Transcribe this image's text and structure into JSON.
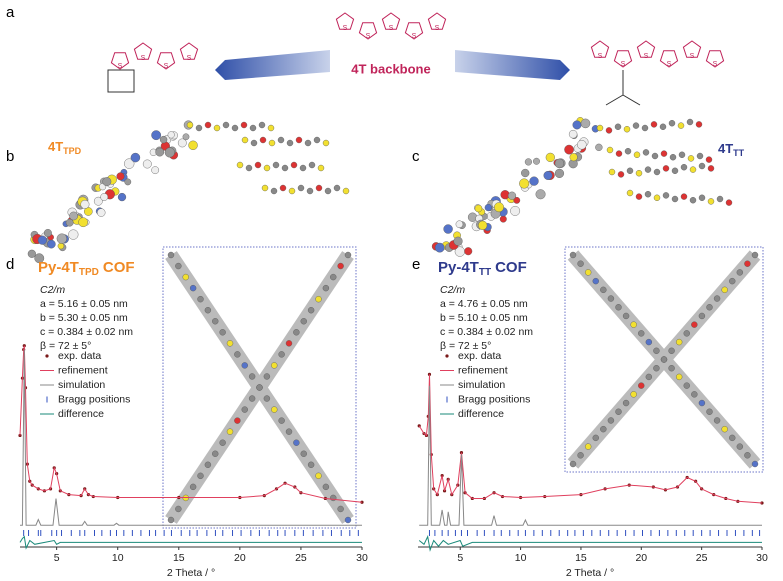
{
  "panel_labels": [
    "a",
    "b",
    "c",
    "d",
    "e"
  ],
  "molecules": {
    "center": "4T backbone",
    "left": {
      "name": "4T",
      "sub": "TPD"
    },
    "right": {
      "name": "4T",
      "sub": "TT"
    }
  },
  "chart_data": [
    {
      "type": "line",
      "title": "Py-4T",
      "title_sub": "TPD",
      "title_suffix": "COF",
      "title_color": "#f08a24",
      "space_group": "C2/m",
      "parameters": [
        "a = 5.16 ± 0.05 nm",
        "b = 5.30 ± 0.05 nm",
        "c = 0.384 ± 0.02 nm",
        "β = 72 ± 5°"
      ],
      "xlabel": "2 Theta / °",
      "xlim": [
        2,
        30
      ],
      "xticks": [
        5,
        10,
        15,
        20,
        25,
        30
      ],
      "ylim": [
        -10,
        100
      ],
      "series": [
        {
          "name": "exp. data",
          "color": "#7a1a1a",
          "x": [
            2.0,
            2.2,
            2.3,
            2.35,
            2.45,
            2.6,
            2.8,
            3.0,
            3.5,
            4.0,
            4.5,
            4.8,
            5.0,
            5.3,
            6,
            7,
            7.3,
            7.6,
            8,
            10,
            15,
            20,
            22,
            23,
            23.7,
            24.5,
            25,
            27,
            30
          ],
          "values": [
            50,
            80,
            95,
            97,
            75,
            35,
            26,
            24,
            22,
            21,
            22,
            33,
            30,
            21,
            19,
            18.5,
            22,
            19,
            18,
            17.5,
            17.5,
            17.5,
            18.5,
            22,
            25,
            23,
            20,
            17,
            15
          ]
        },
        {
          "name": "refinement",
          "color": "#e0405e",
          "x": [
            2.0,
            2.2,
            2.3,
            2.35,
            2.45,
            2.6,
            2.8,
            3.0,
            3.5,
            4.0,
            4.5,
            4.8,
            5.0,
            5.3,
            6,
            7,
            7.3,
            7.6,
            8,
            10,
            15,
            20,
            22,
            23,
            23.7,
            24.5,
            25,
            27,
            30
          ],
          "values": [
            50,
            80,
            95,
            97,
            75,
            35,
            26,
            24,
            22,
            21,
            22,
            33,
            30,
            21,
            19,
            18.5,
            22,
            19,
            18,
            17.5,
            17.5,
            17.5,
            18.5,
            22,
            25,
            23,
            20,
            17,
            15
          ]
        },
        {
          "name": "simulation",
          "color": "#888888",
          "x": [
            2,
            2.2,
            2.35,
            2.5,
            3.3,
            3.5,
            3.7,
            4.7,
            4.95,
            5.2,
            7.1,
            7.3,
            7.5,
            9.7,
            9.9,
            10.1,
            30
          ],
          "values": [
            3,
            3,
            95,
            3,
            3,
            6,
            3,
            3,
            17,
            3,
            3,
            5,
            3,
            3,
            4,
            3,
            3
          ]
        },
        {
          "name": "Bragg positions",
          "color": "#3050c0",
          "x": [
            2.3,
            2.7,
            3.5,
            3.7,
            4.6,
            5.0,
            5.4,
            6.2,
            6.9,
            7.3,
            8.1,
            8.7,
            9.4,
            9.9,
            10.5,
            11.2,
            11.9,
            12.6,
            13.1,
            13.8,
            14.4,
            15.2,
            15.9,
            16.5,
            17.3,
            18.0,
            18.6,
            19.4,
            20.1,
            20.9,
            21.6,
            22.4,
            23.1,
            23.7,
            24.5,
            25.2,
            26.0,
            26.8,
            27.5,
            28.3,
            29.0,
            29.7
          ]
        },
        {
          "name": "difference",
          "color": "#1a8a7a",
          "x": [
            2,
            2.2,
            2.35,
            2.5,
            2.8,
            3.2,
            4.8,
            5.0,
            5.3,
            6,
            8,
            30
          ],
          "values": [
            -6,
            -4,
            -3,
            -9,
            -5,
            -7,
            -5,
            -7,
            -6,
            -6,
            -6,
            -6
          ]
        }
      ]
    },
    {
      "type": "line",
      "title": "Py-4T",
      "title_sub": "TT",
      "title_suffix": "COF",
      "title_color": "#2e3a8c",
      "space_group": "C2/m",
      "parameters": [
        "a = 4.76 ± 0.05 nm",
        "b = 5.10 ± 0.05 nm",
        "c = 0.384 ± 0.02 nm",
        "β = 72 ± 5°"
      ],
      "xlabel": "2 Theta / °",
      "xlim": [
        1.5,
        30
      ],
      "xticks": [
        5,
        10,
        15,
        20,
        25,
        30
      ],
      "ylim": [
        -10,
        100
      ],
      "series": [
        {
          "name": "exp. data",
          "color": "#7a1a1a",
          "x": [
            1.6,
            2.0,
            2.2,
            2.35,
            2.45,
            2.6,
            2.8,
            3.1,
            3.5,
            3.7,
            4.0,
            4.3,
            4.8,
            5.1,
            5.4,
            6,
            7,
            7.8,
            8.5,
            10,
            12,
            15,
            17,
            19,
            21,
            22,
            23,
            23.8,
            24.5,
            25,
            26,
            27,
            28,
            30
          ],
          "values": [
            55,
            51,
            50,
            60,
            82,
            40,
            22,
            19,
            29,
            21,
            27,
            19,
            24,
            41,
            20,
            17,
            17,
            20,
            18,
            17.5,
            18,
            19,
            22,
            24,
            23,
            21.5,
            23,
            28,
            26,
            22,
            19,
            17,
            15.5,
            14.6
          ]
        },
        {
          "name": "refinement",
          "color": "#e0405e",
          "x": [
            1.6,
            2.0,
            2.2,
            2.35,
            2.45,
            2.6,
            2.8,
            3.1,
            3.5,
            3.7,
            4.0,
            4.3,
            4.8,
            5.1,
            5.4,
            6,
            7,
            7.8,
            8.5,
            10,
            12,
            15,
            17,
            19,
            21,
            22,
            23,
            23.8,
            24.5,
            25,
            26,
            27,
            28,
            30
          ],
          "values": [
            55,
            51,
            50,
            60,
            82,
            40,
            22,
            19,
            29,
            21,
            27,
            19,
            24,
            41,
            20,
            17,
            17,
            20,
            18,
            17.5,
            18,
            19,
            22,
            24,
            23,
            21.5,
            23,
            28,
            26,
            22,
            19,
            17,
            15.5,
            14.6
          ]
        },
        {
          "name": "simulation",
          "color": "#888888",
          "x": [
            1.6,
            2.3,
            2.45,
            2.6,
            3.3,
            3.5,
            3.7,
            3.9,
            4.0,
            4.2,
            4.9,
            5.1,
            5.3,
            7.6,
            7.8,
            8,
            10.2,
            10.4,
            10.6,
            30
          ],
          "values": [
            3,
            3,
            76,
            3,
            3,
            11,
            3,
            3,
            10,
            3,
            3,
            40,
            3,
            3,
            8,
            3,
            3,
            5.7,
            3,
            3
          ]
        },
        {
          "name": "Bragg positions",
          "color": "#3050c0",
          "x": [
            2.45,
            2.9,
            3.5,
            4.0,
            4.6,
            5.1,
            5.6,
            6.4,
            7.0,
            7.8,
            8.4,
            9.1,
            9.8,
            10.4,
            11.1,
            11.8,
            12.5,
            13.2,
            13.9,
            14.5,
            15.2,
            15.9,
            16.6,
            17.3,
            18.0,
            18.7,
            19.4,
            20.1,
            20.8,
            21.5,
            22.2,
            22.9,
            23.6,
            24.3,
            25.0,
            25.7,
            26.4,
            27.1,
            27.8,
            28.5,
            29.2,
            29.8
          ]
        },
        {
          "name": "difference",
          "color": "#1a8a7a",
          "x": [
            1.6,
            2,
            2.3,
            2.5,
            2.8,
            3.2,
            3.6,
            4,
            5,
            5.2,
            6,
            8,
            30
          ],
          "values": [
            -5,
            -7,
            -3,
            -10,
            -5,
            -8,
            -5,
            -7,
            -5,
            -8,
            -6,
            -6,
            -6
          ]
        }
      ]
    }
  ]
}
